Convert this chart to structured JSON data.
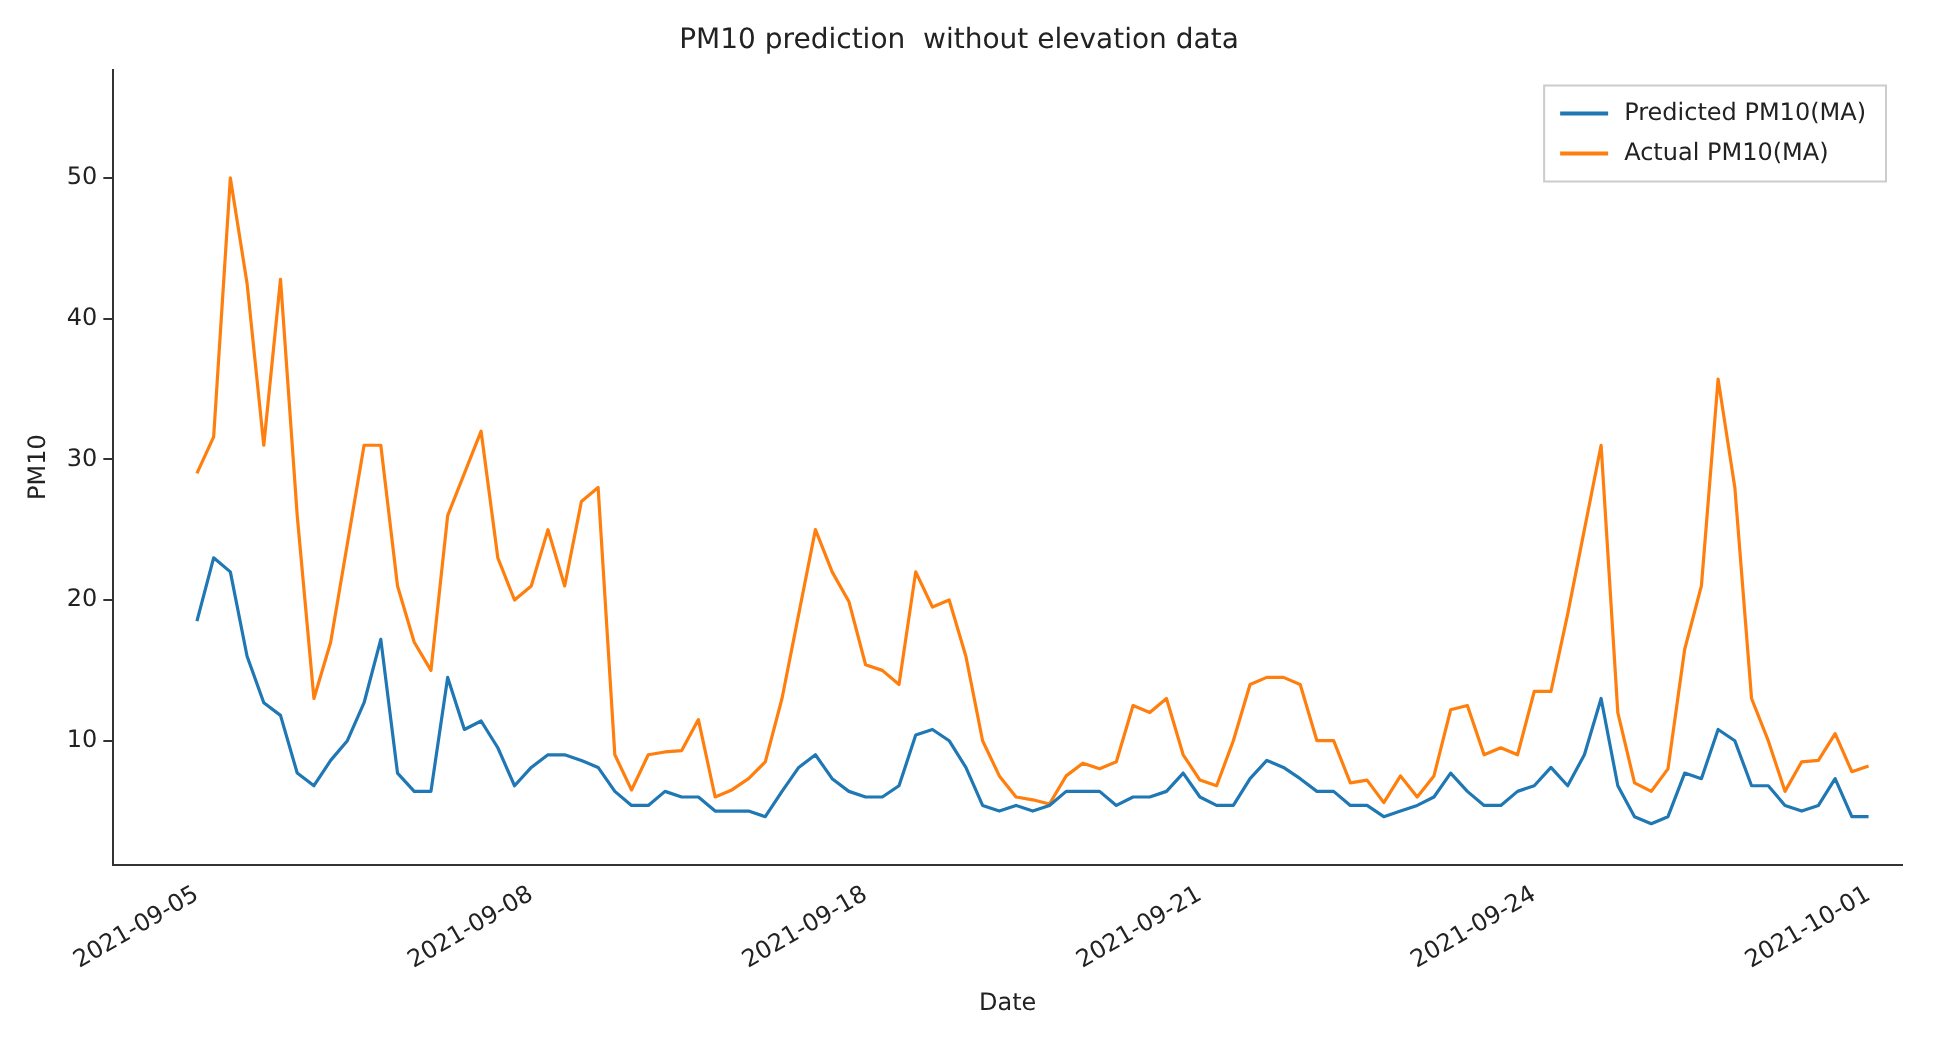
{
  "chart_data": {
    "type": "line",
    "title": "PM10 prediction  without elevation data",
    "xlabel": "Date",
    "ylabel": "PM10",
    "categories": [
      null,
      null,
      null,
      null,
      null,
      "2021-09-05",
      null,
      null,
      null,
      null,
      null,
      null,
      null,
      null,
      null,
      null,
      null,
      null,
      null,
      null,
      null,
      null,
      null,
      null,
      null,
      "2021-09-08",
      null,
      null,
      null,
      null,
      null,
      null,
      null,
      null,
      null,
      null,
      null,
      null,
      null,
      null,
      null,
      null,
      null,
      null,
      null,
      "2021-09-18",
      null,
      null,
      null,
      null,
      null,
      null,
      null,
      null,
      null,
      null,
      null,
      null,
      null,
      null,
      null,
      null,
      null,
      null,
      null,
      "2021-09-21",
      null,
      null,
      null,
      null,
      null,
      null,
      null,
      null,
      null,
      null,
      null,
      null,
      null,
      null,
      null,
      null,
      null,
      null,
      null,
      "2021-09-24",
      null,
      null,
      null,
      null,
      null,
      null,
      null,
      null,
      null,
      null,
      null,
      null,
      null,
      null,
      null,
      null,
      null,
      null,
      null,
      "2021-10-01",
      null,
      null
    ],
    "series": [
      {
        "name": "Predicted PM10(MA)",
        "color": "#1f77b4",
        "values": [
          null,
          null,
          null,
          null,
          null,
          18.5,
          23,
          22,
          16,
          12.7,
          11.8,
          7.7,
          6.8,
          8.6,
          10,
          12.7,
          17.2,
          7.7,
          6.4,
          6.4,
          14.5,
          10.8,
          11.4,
          9.5,
          6.8,
          8.1,
          9,
          9,
          8.6,
          8.1,
          6.4,
          5.4,
          5.4,
          6.4,
          6,
          6,
          5,
          5,
          5,
          4.6,
          6.4,
          8.1,
          9,
          7.3,
          6.4,
          6,
          6,
          6.8,
          10.4,
          10.8,
          10,
          8.1,
          5.4,
          5,
          5.4,
          5,
          5.4,
          6.4,
          6.4,
          6.4,
          5.4,
          6,
          6,
          6.4,
          7.7,
          6,
          5.4,
          5.4,
          7.3,
          8.6,
          8.1,
          7.3,
          6.4,
          6.4,
          5.4,
          5.4,
          4.6,
          5,
          5.4,
          6,
          7.7,
          6.4,
          5.4,
          5.4,
          6.4,
          6.8,
          8.1,
          6.8,
          9,
          13,
          6.8,
          4.6,
          4.1,
          4.6,
          7.7,
          7.3,
          10.8,
          10,
          6.8,
          6.8,
          5.4,
          5,
          5.4,
          7.3,
          4.6,
          4.6,
          null,
          null
        ]
      },
      {
        "name": "Actual PM10(MA)",
        "color": "#ff7f0e",
        "values": [
          null,
          null,
          null,
          null,
          null,
          29,
          31.6,
          50,
          42.5,
          31,
          42.8,
          26,
          13,
          17,
          24,
          31,
          31,
          21,
          17,
          15,
          26,
          29,
          32,
          23,
          20,
          21,
          25,
          21,
          27,
          28,
          9,
          6.5,
          9,
          9.2,
          9.3,
          11.5,
          6,
          6.5,
          7.3,
          8.5,
          13,
          19,
          25,
          22,
          19.9,
          15.4,
          15,
          14,
          22,
          19.5,
          20,
          16,
          10,
          7.5,
          6,
          5.8,
          5.5,
          7.5,
          8.4,
          8,
          8.5,
          12.5,
          12,
          13,
          9,
          7.2,
          6.8,
          10,
          14,
          14.5,
          14.5,
          14,
          10,
          10,
          7,
          7.2,
          5.6,
          7.5,
          6,
          7.5,
          12.2,
          12.5,
          9,
          9.5,
          9,
          13.5,
          13.5,
          19,
          25,
          31,
          12,
          7,
          6.4,
          8,
          16.5,
          21,
          35.7,
          28,
          13,
          10,
          6.4,
          8.5,
          8.6,
          10.5,
          7.8,
          8.2,
          null,
          null
        ]
      }
    ],
    "ylim": [
      1.2,
      57.7
    ],
    "yticks": [
      10,
      20,
      30,
      40,
      50
    ],
    "legend": "top right",
    "grid": false
  }
}
